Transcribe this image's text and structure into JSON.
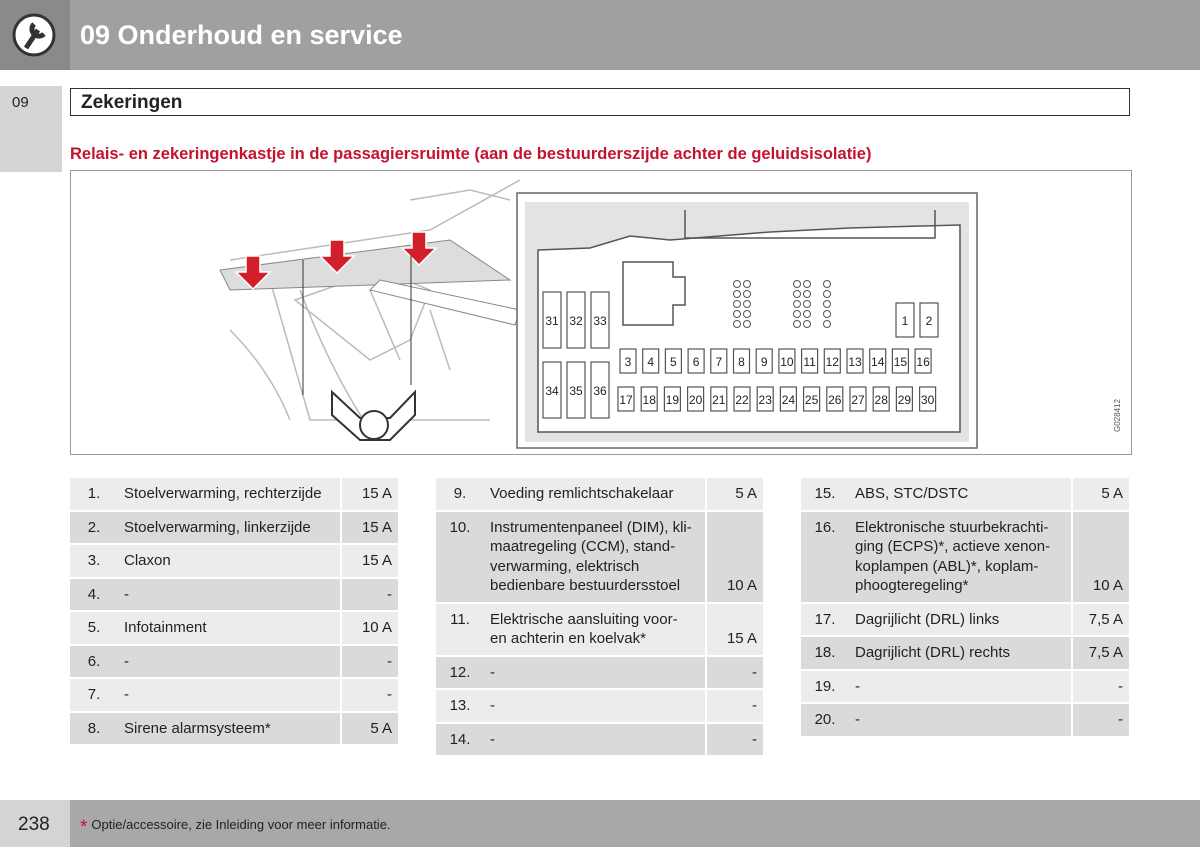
{
  "header": {
    "chapter": "09 Onderhoud en service"
  },
  "side_tab": "09",
  "section": {
    "title": "Zekeringen"
  },
  "subtitle": "Relais- en zekeringenkastje in de passagiersruimte (aan de bestuurderszijde achter de geluidsisolatie)",
  "figure": {
    "fuses": [
      1,
      2,
      3,
      4,
      5,
      6,
      7,
      8,
      9,
      10,
      11,
      12,
      13,
      14,
      15,
      16,
      17,
      18,
      19,
      20,
      21,
      22,
      23,
      24,
      25,
      26,
      27,
      28,
      29,
      30,
      31,
      32,
      33,
      34,
      35,
      36
    ],
    "code": "G028412"
  },
  "tables": [
    {
      "rows": [
        {
          "num": "1.",
          "lines": [
            "Stoelverwarming, rechterzijde"
          ],
          "amp": "15 A"
        },
        {
          "num": "2.",
          "lines": [
            "Stoelverwarming, linkerzijde"
          ],
          "amp": "15 A"
        },
        {
          "num": "3.",
          "lines": [
            "Claxon"
          ],
          "amp": "15 A"
        },
        {
          "num": "4.",
          "lines": [
            "-"
          ],
          "amp": "-"
        },
        {
          "num": "5.",
          "lines": [
            "Infotainment"
          ],
          "amp": "10 A"
        },
        {
          "num": "6.",
          "lines": [
            "-"
          ],
          "amp": "-"
        },
        {
          "num": "7.",
          "lines": [
            "-"
          ],
          "amp": "-"
        },
        {
          "num": "8.",
          "lines": [
            "Sirene alarmsysteem*"
          ],
          "amp": "5 A"
        }
      ]
    },
    {
      "rows": [
        {
          "num": "9.",
          "lines": [
            "Voeding remlichtschakelaar"
          ],
          "amp": "5 A"
        },
        {
          "num": "10.",
          "lines": [
            "Instrumentenpaneel (DIM), kli-",
            "maatregeling (CCM), stand-",
            "verwarming, elektrisch",
            "bedienbare bestuurdersstoel"
          ],
          "amp": "10 A"
        },
        {
          "num": "11.",
          "lines": [
            "Elektrische aansluiting voor-",
            "en achterin en koelvak*"
          ],
          "amp": "15 A"
        },
        {
          "num": "12.",
          "lines": [
            "-"
          ],
          "amp": "-"
        },
        {
          "num": "13.",
          "lines": [
            "-"
          ],
          "amp": "-"
        },
        {
          "num": "14.",
          "lines": [
            "-"
          ],
          "amp": "-"
        }
      ]
    },
    {
      "rows": [
        {
          "num": "15.",
          "lines": [
            "ABS, STC/DSTC"
          ],
          "amp": "5 A"
        },
        {
          "num": "16.",
          "lines": [
            "Elektronische stuurbekrachti-",
            "ging (ECPS)*, actieve xenon-",
            "koplampen (ABL)*, koplam-",
            "phoogteregeling*"
          ],
          "amp": "10 A"
        },
        {
          "num": "17.",
          "lines": [
            "Dagrijlicht (DRL) links"
          ],
          "amp": "7,5 A"
        },
        {
          "num": "18.",
          "lines": [
            "Dagrijlicht (DRL) rechts"
          ],
          "amp": "7,5 A"
        },
        {
          "num": "19.",
          "lines": [
            "-"
          ],
          "amp": "-"
        },
        {
          "num": "20.",
          "lines": [
            "-"
          ],
          "amp": "-"
        }
      ]
    }
  ],
  "footer": {
    "page": "238",
    "note_mark": "*",
    "note": "Optie/accessoire, zie Inleiding voor meer informatie."
  }
}
